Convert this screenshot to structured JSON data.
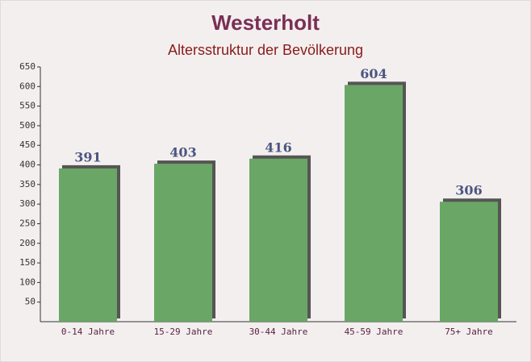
{
  "chart_data": {
    "type": "bar",
    "title": "Westerholt",
    "subtitle": "Altersstruktur der Bevölkerung",
    "categories": [
      "0-14 Jahre",
      "15-29 Jahre",
      "30-44 Jahre",
      "45-59 Jahre",
      "75+ Jahre"
    ],
    "values": [
      391,
      403,
      416,
      604,
      306
    ],
    "color": "#6aa665",
    "ylim": [
      0,
      650
    ],
    "yticks": [
      50,
      100,
      150,
      200,
      250,
      300,
      350,
      400,
      450,
      500,
      550,
      600,
      650
    ],
    "grid": false
  }
}
